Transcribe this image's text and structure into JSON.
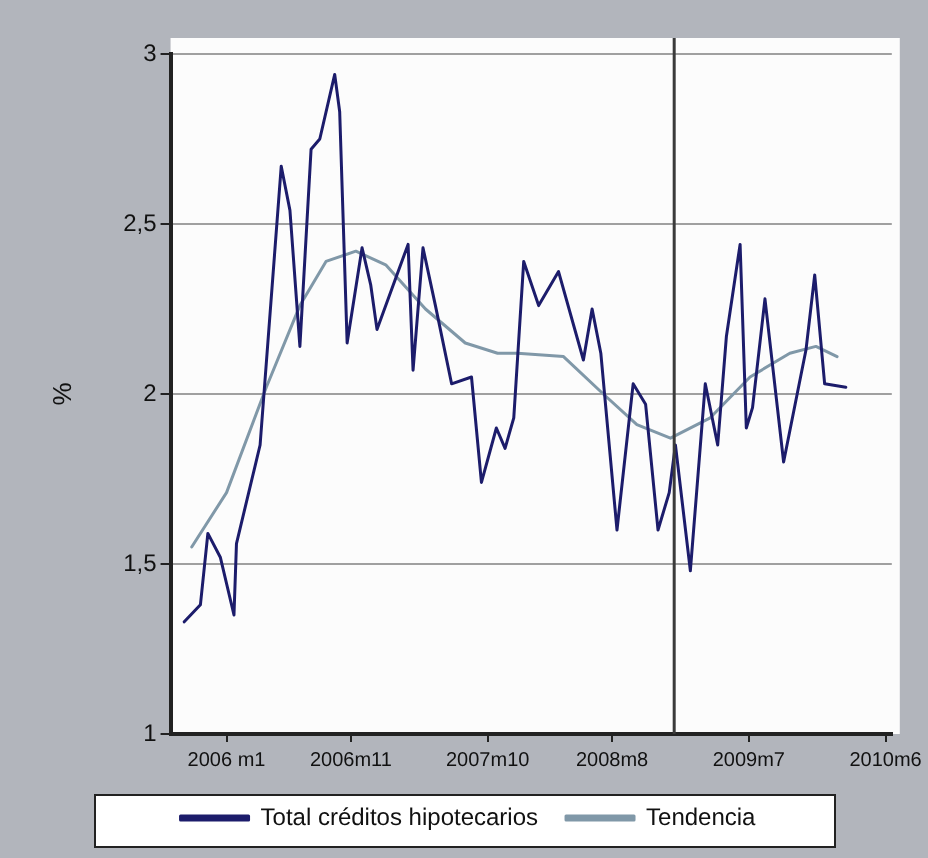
{
  "chart_data": {
    "type": "line",
    "ylabel": "%",
    "xlim": [
      "2005-08-16",
      "2010-06-16"
    ],
    "ylim": [
      1,
      3
    ],
    "xticks": [
      {
        "value": "2006-01",
        "label": "2006 m1"
      },
      {
        "value": "2006-11",
        "label": "2006m11"
      },
      {
        "value": "2007-10",
        "label": "2007m10"
      },
      {
        "value": "2008-08",
        "label": "2008m8"
      },
      {
        "value": "2009-07",
        "label": "2009m7"
      },
      {
        "value": "2010-06",
        "label": "2010m6"
      }
    ],
    "yticks": [
      1,
      {
        "value": 1.5,
        "label": "1,5"
      },
      2,
      {
        "value": 2.5,
        "label": "2,5"
      },
      3
    ],
    "grid": "y",
    "legend": "bottom",
    "marker": "none",
    "line_style": "solid",
    "ref_lines": [
      {
        "axis": "x",
        "value": "2009-01",
        "color": "#3a3a3a"
      }
    ],
    "series": [
      {
        "name": "Total créditos hipotecarios",
        "color": "#1c1c6b",
        "x": [
          "2005-09-19",
          "2005-10-28",
          "2005-11-16",
          "2005-12-16",
          "2006-01-19",
          "2006-01-25",
          "2006-03-22",
          "2006-05-13",
          "2006-06-04",
          "2006-06-28",
          "2006-07-25",
          "2006-08-16",
          "2006-09-22",
          "2006-10-04",
          "2006-10-22",
          "2006-11-28",
          "2006-12-19",
          "2007-01-04",
          "2007-03-19",
          "2007-04-01",
          "2007-04-25",
          "2007-05-25",
          "2007-07-04",
          "2007-08-22",
          "2007-09-16",
          "2007-10-22",
          "2007-11-13",
          "2007-12-04",
          "2007-12-28",
          "2008-02-04",
          "2008-03-22",
          "2008-05-22",
          "2008-06-13",
          "2008-07-04",
          "2008-08-13",
          "2008-09-22",
          "2008-10-22",
          "2008-11-22",
          "2008-12-19",
          "2009-01-04",
          "2009-02-10",
          "2009-03-16",
          "2009-04-16",
          "2009-05-07",
          "2009-06-10",
          "2009-06-25",
          "2009-07-10",
          "2009-08-10",
          "2009-09-25",
          "2009-11-19",
          "2009-12-10",
          "2010-01-04",
          "2010-02-25"
        ],
        "values": [
          1.33,
          1.38,
          1.59,
          1.52,
          1.35,
          1.56,
          1.85,
          2.67,
          2.54,
          2.14,
          2.72,
          2.75,
          2.94,
          2.83,
          2.15,
          2.43,
          2.32,
          2.19,
          2.44,
          2.07,
          2.43,
          2.26,
          2.03,
          2.05,
          1.74,
          1.9,
          1.84,
          1.93,
          2.39,
          2.26,
          2.36,
          2.1,
          2.25,
          2.12,
          1.6,
          2.03,
          1.97,
          1.6,
          1.71,
          1.85,
          1.48,
          2.03,
          1.85,
          2.17,
          2.44,
          1.9,
          1.96,
          2.28,
          1.8,
          2.13,
          2.35,
          2.03,
          2.02
        ]
      },
      {
        "name": "Tendencia",
        "color": "#8098a8",
        "x": [
          "2005-10-07",
          "2006-01-01",
          "2006-04-07",
          "2006-06-28",
          "2006-09-01",
          "2006-11-13",
          "2007-01-25",
          "2007-05-01",
          "2007-08-07",
          "2007-10-25",
          "2007-12-13",
          "2008-04-04",
          "2008-07-10",
          "2008-10-01",
          "2008-12-22",
          "2009-03-28",
          "2009-07-04",
          "2009-10-10",
          "2009-12-13",
          "2010-02-04"
        ],
        "values": [
          1.55,
          1.71,
          2.02,
          2.26,
          2.39,
          2.42,
          2.38,
          2.25,
          2.15,
          2.12,
          2.12,
          2.11,
          2.0,
          1.91,
          1.87,
          1.93,
          2.05,
          2.12,
          2.14,
          2.11
        ]
      }
    ]
  }
}
